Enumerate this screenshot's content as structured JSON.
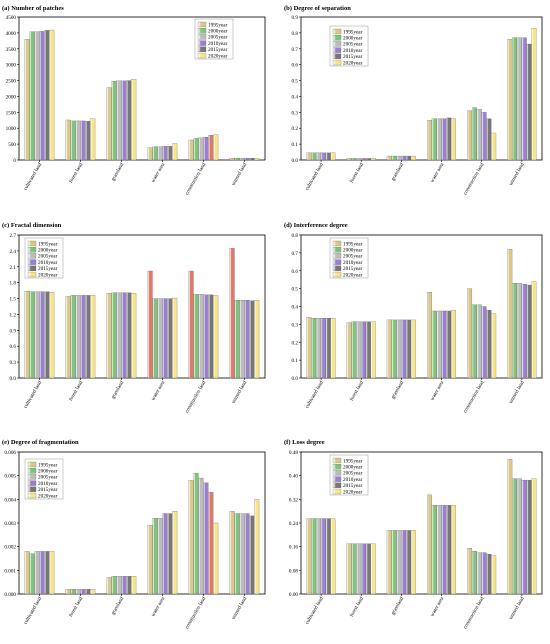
{
  "legend_years": [
    "1995year",
    "2000year",
    "2005year",
    "2010year",
    "2015year",
    "2020year"
  ],
  "chart_data": [
    {
      "type": "bar",
      "title": "(a) Number of patches",
      "categories": [
        "cultivated land",
        "forest land",
        "grassland",
        "water area",
        "construction land",
        "unused land"
      ],
      "ylim": [
        0,
        4500
      ],
      "yticks": [
        0,
        500,
        1000,
        1500,
        2000,
        2500,
        3000,
        3500,
        4000,
        4500
      ],
      "ytick_labels": [
        "0",
        "500",
        "1000",
        "1500",
        "2000",
        "2500",
        "3000",
        "3500",
        "4000",
        "4500"
      ],
      "legend_position": "top-right",
      "series": [
        {
          "name": "1995year",
          "values": [
            3800,
            1260,
            2280,
            390,
            630,
            60
          ]
        },
        {
          "name": "2000year",
          "values": [
            4040,
            1230,
            2480,
            420,
            680,
            60
          ]
        },
        {
          "name": "2005year",
          "values": [
            4040,
            1230,
            2490,
            420,
            700,
            60
          ]
        },
        {
          "name": "2010year",
          "values": [
            4050,
            1230,
            2490,
            430,
            720,
            60
          ]
        },
        {
          "name": "2015year",
          "values": [
            4080,
            1220,
            2500,
            430,
            780,
            60
          ]
        },
        {
          "name": "2020year",
          "values": [
            4090,
            1300,
            2540,
            520,
            800,
            60
          ]
        }
      ]
    },
    {
      "type": "bar",
      "title": "(b) Degree of separation",
      "categories": [
        "cultivated land",
        "forest land",
        "grassland",
        "water area",
        "construction land",
        "unused land"
      ],
      "ylim": [
        0,
        0.9
      ],
      "yticks": [
        0,
        0.1,
        0.2,
        0.3,
        0.4,
        0.5,
        0.6,
        0.7,
        0.8,
        0.9
      ],
      "ytick_labels": [
        "0.0",
        "0.1",
        "0.2",
        "0.3",
        "0.4",
        "0.5",
        "0.6",
        "0.7",
        "0.8",
        "0.9"
      ],
      "legend_position": "top-center",
      "series": [
        {
          "name": "1995year",
          "values": [
            0.045,
            0.01,
            0.025,
            0.25,
            0.31,
            0.76
          ]
        },
        {
          "name": "2000year",
          "values": [
            0.045,
            0.01,
            0.025,
            0.26,
            0.33,
            0.77
          ]
        },
        {
          "name": "2005year",
          "values": [
            0.045,
            0.01,
            0.025,
            0.26,
            0.32,
            0.77
          ]
        },
        {
          "name": "2010year",
          "values": [
            0.045,
            0.01,
            0.025,
            0.26,
            0.3,
            0.77
          ]
        },
        {
          "name": "2015year",
          "values": [
            0.045,
            0.01,
            0.025,
            0.265,
            0.26,
            0.73
          ]
        },
        {
          "name": "2020year",
          "values": [
            0.045,
            0.01,
            0.025,
            0.26,
            0.17,
            0.83
          ]
        }
      ]
    },
    {
      "type": "bar",
      "title": "(c) Fractal dimension",
      "categories": [
        "cultivated land",
        "forest land",
        "grassland",
        "water area",
        "construction land",
        "unused land"
      ],
      "ylim": [
        0,
        2.7
      ],
      "yticks": [
        0,
        0.3,
        0.6,
        0.9,
        1.2,
        1.5,
        1.8,
        2.1,
        2.4,
        2.7
      ],
      "ytick_labels": [
        "0.0",
        "0.3",
        "0.6",
        "0.9",
        "1.2",
        "1.5",
        "1.8",
        "2.1",
        "2.4",
        "2.7"
      ],
      "legend_position": "top-left",
      "series": [
        {
          "name": "1995year",
          "values": [
            1.64,
            1.54,
            1.6,
            2.02,
            2.02,
            2.45
          ]
        },
        {
          "name": "2000year",
          "values": [
            1.63,
            1.56,
            1.61,
            1.5,
            1.58,
            1.47
          ]
        },
        {
          "name": "2005year",
          "values": [
            1.63,
            1.56,
            1.61,
            1.5,
            1.58,
            1.47
          ]
        },
        {
          "name": "2010year",
          "values": [
            1.63,
            1.56,
            1.61,
            1.5,
            1.57,
            1.47
          ]
        },
        {
          "name": "2015year",
          "values": [
            1.63,
            1.56,
            1.61,
            1.5,
            1.57,
            1.46
          ]
        },
        {
          "name": "2020year",
          "values": [
            1.62,
            1.56,
            1.6,
            1.51,
            1.56,
            1.47
          ]
        }
      ]
    },
    {
      "type": "bar",
      "title": "(d) Interference degree",
      "categories": [
        "cultivated land",
        "forest land",
        "grassland",
        "water area",
        "construction land",
        "unused land"
      ],
      "ylim": [
        0,
        0.8
      ],
      "yticks": [
        0,
        0.1,
        0.2,
        0.3,
        0.4,
        0.5,
        0.6,
        0.7,
        0.8
      ],
      "ytick_labels": [
        "0.0",
        "0.1",
        "0.2",
        "0.3",
        "0.4",
        "0.5",
        "0.6",
        "0.7",
        "0.8"
      ],
      "legend_position": "top-center",
      "series": [
        {
          "name": "1995year",
          "values": [
            0.34,
            0.31,
            0.325,
            0.48,
            0.5,
            0.72
          ]
        },
        {
          "name": "2000year",
          "values": [
            0.335,
            0.315,
            0.325,
            0.375,
            0.41,
            0.53
          ]
        },
        {
          "name": "2005year",
          "values": [
            0.335,
            0.315,
            0.325,
            0.375,
            0.41,
            0.53
          ]
        },
        {
          "name": "2010year",
          "values": [
            0.335,
            0.315,
            0.325,
            0.375,
            0.4,
            0.525
          ]
        },
        {
          "name": "2015year",
          "values": [
            0.335,
            0.315,
            0.325,
            0.375,
            0.38,
            0.52
          ]
        },
        {
          "name": "2020year",
          "values": [
            0.335,
            0.315,
            0.325,
            0.38,
            0.36,
            0.54
          ]
        }
      ]
    },
    {
      "type": "bar",
      "title": "(e) Degree of fragmentation",
      "categories": [
        "cultivated land",
        "forest land",
        "grassland",
        "water area",
        "construction land",
        "unused land"
      ],
      "ylim": [
        0,
        0.006
      ],
      "yticks": [
        0,
        0.001,
        0.002,
        0.003,
        0.004,
        0.005,
        0.006
      ],
      "ytick_labels": [
        "0.000",
        "0.001",
        "0.002",
        "0.003",
        "0.004",
        "0.005",
        "0.006"
      ],
      "legend_position": "top-left",
      "series": [
        {
          "name": "1995year",
          "values": [
            0.0018,
            0.0002,
            0.0007,
            0.0029,
            0.0048,
            0.0035
          ]
        },
        {
          "name": "2000year",
          "values": [
            0.0017,
            0.0002,
            0.00075,
            0.0032,
            0.0051,
            0.0034
          ]
        },
        {
          "name": "2005year",
          "values": [
            0.0018,
            0.0002,
            0.00075,
            0.0032,
            0.0049,
            0.0034
          ]
        },
        {
          "name": "2010year",
          "values": [
            0.0018,
            0.0002,
            0.00075,
            0.0034,
            0.0047,
            0.0034
          ]
        },
        {
          "name": "2015year",
          "values": [
            0.0018,
            0.0002,
            0.00075,
            0.0034,
            0.0043,
            0.0033
          ]
        },
        {
          "name": "2020year",
          "values": [
            0.0018,
            0.0002,
            0.00075,
            0.0035,
            0.003,
            0.004
          ]
        }
      ]
    },
    {
      "type": "bar",
      "title": "(f) Loss degree",
      "categories": [
        "cultivated land",
        "forest land",
        "grassland",
        "water area",
        "construction land",
        "unused land"
      ],
      "ylim": [
        0,
        0.48
      ],
      "yticks": [
        0,
        0.08,
        0.16,
        0.24,
        0.32,
        0.4,
        0.48
      ],
      "ytick_labels": [
        "0.00",
        "0.08",
        "0.16",
        "0.24",
        "0.32",
        "0.40",
        "0.48"
      ],
      "legend_position": "top-center",
      "series": [
        {
          "name": "1995year",
          "values": [
            0.255,
            0.17,
            0.215,
            0.335,
            0.155,
            0.455
          ]
        },
        {
          "name": "2000year",
          "values": [
            0.255,
            0.17,
            0.215,
            0.3,
            0.145,
            0.39
          ]
        },
        {
          "name": "2005year",
          "values": [
            0.255,
            0.17,
            0.215,
            0.3,
            0.14,
            0.39
          ]
        },
        {
          "name": "2010year",
          "values": [
            0.255,
            0.17,
            0.215,
            0.3,
            0.14,
            0.385
          ]
        },
        {
          "name": "2015year",
          "values": [
            0.255,
            0.17,
            0.215,
            0.3,
            0.135,
            0.385
          ]
        },
        {
          "name": "2020year",
          "values": [
            0.255,
            0.17,
            0.215,
            0.3,
            0.13,
            0.39
          ]
        }
      ]
    }
  ],
  "series_colors": [
    "#d8c98a",
    "#7fc47a",
    "#bcbcbc",
    "#9b7fd0",
    "#777777",
    "#f6e58a"
  ],
  "first_bar_colors": [
    [
      "#d8c98a",
      "#d8c98a",
      "#d8c98a",
      "#d8c98a",
      "#d8c98a",
      "#d8c98a"
    ],
    [
      "#d8c98a",
      "#d8c98a",
      "#d8c98a",
      "#d8c98a",
      "#d8c98a",
      "#d8c98a"
    ],
    [
      "#d8c98a",
      "#d8c98a",
      "#d8c98a",
      "#e0796a",
      "#e0796a",
      "#e0796a"
    ],
    [
      "#d8c98a",
      "#d8c98a",
      "#d8c98a",
      "#d8c98a",
      "#d8c98a",
      "#d8c98a"
    ],
    [
      "#d8c98a",
      "#d8c98a",
      "#d8c98a",
      "#d8c98a",
      "#d8c98a",
      "#d8c98a"
    ],
    [
      "#d8c98a",
      "#d8c98a",
      "#d8c98a",
      "#d8c98a",
      "#d8c98a",
      "#d8c98a"
    ]
  ],
  "fifth_bar_overrides": {
    "0": {
      "4": "#e0796a"
    },
    "4": {
      "4": "#e0796a"
    }
  }
}
